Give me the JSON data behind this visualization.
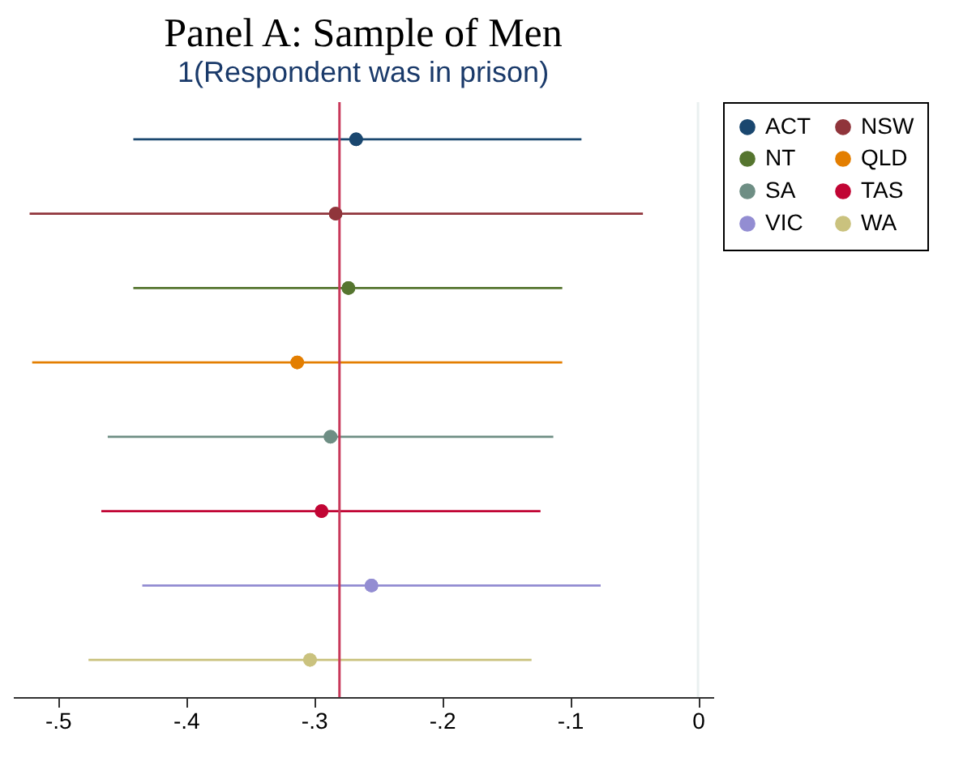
{
  "chart_data": {
    "type": "scatter",
    "orientation": "horizontal",
    "title": "Panel A: Sample of Men",
    "subtitle": "1(Respondent was in prison)",
    "categories": [
      null,
      null,
      null,
      null,
      null,
      null,
      null,
      null
    ],
    "series": [
      {
        "name": "ACT",
        "color": "#1a476f",
        "values": [
          -0.267,
          null,
          null,
          null,
          null,
          null,
          null,
          null
        ],
        "errors": [
          [
            -0.441,
            -0.091
          ],
          null,
          null,
          null,
          null,
          null,
          null,
          null
        ]
      },
      {
        "name": "NSW",
        "color": "#90353b",
        "values": [
          null,
          -0.283,
          null,
          null,
          null,
          null,
          null,
          null
        ],
        "errors": [
          null,
          [
            -0.522,
            -0.043
          ],
          null,
          null,
          null,
          null,
          null,
          null
        ]
      },
      {
        "name": "NT",
        "color": "#55752f",
        "values": [
          null,
          null,
          -0.273,
          null,
          null,
          null,
          null,
          null
        ],
        "errors": [
          null,
          null,
          [
            -0.441,
            -0.106
          ],
          null,
          null,
          null,
          null,
          null
        ]
      },
      {
        "name": "QLD",
        "color": "#e37e00",
        "values": [
          null,
          null,
          null,
          -0.313,
          null,
          null,
          null,
          null
        ],
        "errors": [
          null,
          null,
          null,
          [
            -0.52,
            -0.106
          ],
          null,
          null,
          null,
          null
        ]
      },
      {
        "name": "SA",
        "color": "#6e8e84",
        "values": [
          null,
          null,
          null,
          null,
          -0.287,
          null,
          null,
          null
        ],
        "errors": [
          null,
          null,
          null,
          null,
          [
            -0.461,
            -0.113
          ],
          null,
          null,
          null
        ]
      },
      {
        "name": "TAS",
        "color": "#c10534",
        "values": [
          null,
          null,
          null,
          null,
          null,
          -0.294,
          null,
          null
        ],
        "errors": [
          null,
          null,
          null,
          null,
          null,
          [
            -0.466,
            -0.123
          ],
          null,
          null
        ]
      },
      {
        "name": "VIC",
        "color": "#938dd2",
        "values": [
          null,
          null,
          null,
          null,
          null,
          null,
          -0.255,
          null
        ],
        "errors": [
          null,
          null,
          null,
          null,
          null,
          null,
          [
            -0.434,
            -0.076
          ],
          null
        ]
      },
      {
        "name": "WA",
        "color": "#cac27e",
        "values": [
          null,
          null,
          null,
          null,
          null,
          null,
          null,
          -0.303
        ],
        "errors": [
          null,
          null,
          null,
          null,
          null,
          null,
          null,
          [
            -0.476,
            -0.13
          ]
        ]
      }
    ],
    "xlim": [
      -0.535,
      0.012
    ],
    "xticks": [
      {
        "value": -0.5,
        "label": "-.5"
      },
      {
        "value": -0.4,
        "label": "-.4"
      },
      {
        "value": -0.3,
        "label": "-.3"
      },
      {
        "value": -0.2,
        "label": "-.2"
      },
      {
        "value": -0.1,
        "label": "-.1"
      },
      0
    ],
    "ref_lines": [
      {
        "axis": "x",
        "value": -0.28,
        "color": "#c8385a"
      },
      {
        "axis": "x",
        "value": 0,
        "color": "#eaf0f0"
      }
    ],
    "marker": "circle",
    "legend": "right",
    "tick_labels": "x",
    "grid": false
  }
}
